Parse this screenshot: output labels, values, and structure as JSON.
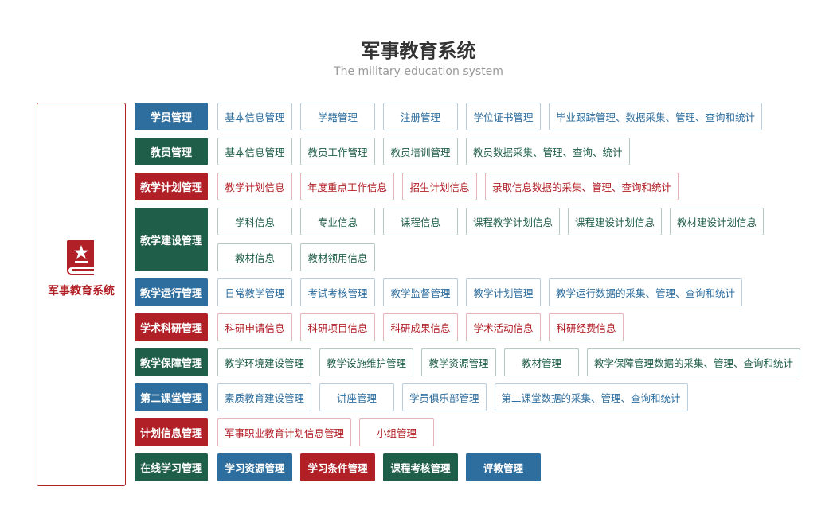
{
  "header": {
    "title": "军事教育系统",
    "subtitle": "The military education system"
  },
  "side": {
    "label": "军事教育系统",
    "color": "#b22027"
  },
  "rows": [
    {
      "category": "学员管理",
      "color": "#2e6e9e",
      "lines": [
        [
          "基本信息管理",
          "学籍管理",
          "注册管理",
          "学位证书管理",
          "毕业跟踪管理、数据采集、管理、查询和统计"
        ]
      ]
    },
    {
      "category": "教员管理",
      "color": "#1f5e48",
      "lines": [
        [
          "基本信息管理",
          "教员工作管理",
          "教员培训管理",
          "教员数据采集、管理、查询、统计"
        ]
      ]
    },
    {
      "category": "教学计划管理",
      "color": "#b22027",
      "lines": [
        [
          "教学计划信息",
          "年度重点工作信息",
          "招生计划信息",
          "录取信息数据的采集、管理、查询和统计"
        ]
      ]
    },
    {
      "category": "教学建设管理",
      "color": "#1f5e48",
      "lines": [
        [
          "学科信息",
          "专业信息",
          "课程信息",
          "课程教学计划信息",
          "课程建设计划信息",
          "教材建设计划信息"
        ],
        [
          "教材信息",
          "教材领用信息"
        ]
      ]
    },
    {
      "category": "教学运行管理",
      "color": "#2e6e9e",
      "lines": [
        [
          "日常教学管理",
          "考试考核管理",
          "教学监督管理",
          "教学计划管理",
          "教学运行数据的采集、管理、查询和统计"
        ]
      ]
    },
    {
      "category": "学术科研管理",
      "color": "#b22027",
      "lines": [
        [
          "科研申请信息",
          "科研项目信息",
          "科研成果信息",
          "学术活动信息",
          "科研经费信息"
        ]
      ]
    },
    {
      "category": "教学保障管理",
      "color": "#1f5e48",
      "lines": [
        [
          "教学环境建设管理",
          "教学设施维护管理",
          "教学资源管理",
          "教材管理",
          "教学保障管理数据的采集、管理、查询和统计"
        ]
      ]
    },
    {
      "category": "第二课堂管理",
      "color": "#2e6e9e",
      "lines": [
        [
          "素质教育建设管理",
          "讲座管理",
          "学员俱乐部管理",
          "第二课堂数据的采集、管理、查询和统计"
        ]
      ]
    },
    {
      "category": "计划信息管理",
      "color": "#b22027",
      "lines": [
        [
          "军事职业教育计划信息管理",
          "小组管理"
        ]
      ]
    },
    {
      "category": "在线学习管理",
      "color": "#1f5e48",
      "filled": true,
      "item_colors": [
        "#2e6e9e",
        "#b22027",
        "#1f5e48",
        "#2e6e9e"
      ],
      "lines": [
        [
          "学习资源管理",
          "学习条件管理",
          "课程考核管理",
          "评教管理"
        ]
      ]
    }
  ]
}
